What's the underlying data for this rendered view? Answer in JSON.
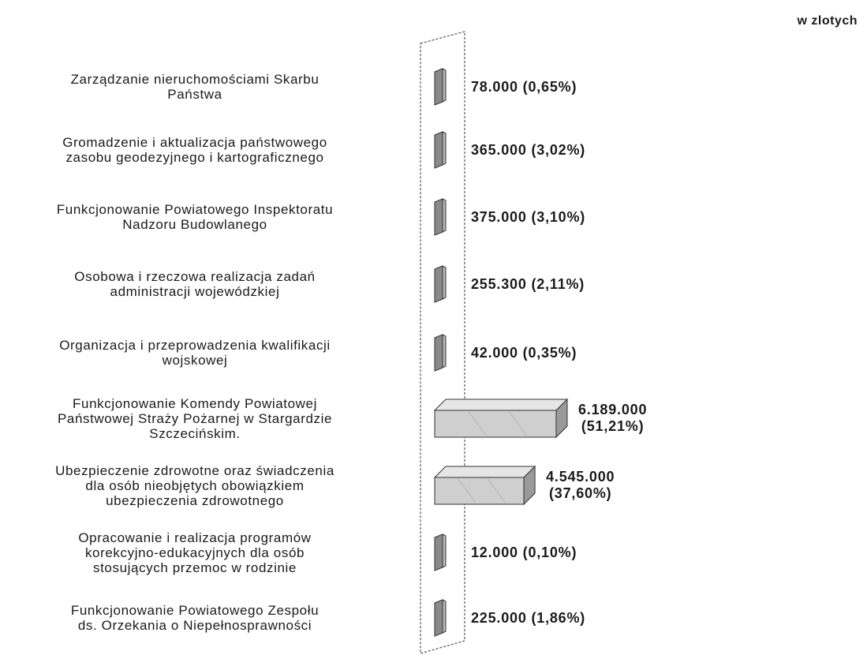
{
  "unit_label": "w zlotych",
  "colors": {
    "bar_small": "#8a8a8a",
    "bar_large": "#cfcfcf",
    "frame": "#555555",
    "text": "#1a1a1a"
  },
  "chart_data": {
    "type": "bar",
    "orientation": "horizontal",
    "unit": "w zlotych",
    "categories": [
      "Zarządzanie nieruchomościami Skarbu Państwa",
      "Gromadzenie i aktualizacja państwowego zasobu geodezyjnego i kartograficznego",
      "Funkcjonowanie Powiatowego Inspektoratu Nadzoru Budowlanego",
      "Osobowa i rzeczowa realizacja zadań administracji wojewódzkiej",
      "Organizacja i przeprowadzenia kwalifikacji wojskowej",
      "Funkcjonowanie Komendy Powiatowej Państwowej Straży Pożarnej w Stargardzie Szczecińskim.",
      "Ubezpieczenie zdrowotne oraz świadczenia dla osób nieobjętych obowiązkiem ubezpieczenia zdrowotnego",
      "Opracowanie i realizacja programów korekcyjno-edukacyjnych dla osób stosujących przemoc w rodzinie",
      "Funkcjonowanie Powiatowego Zespołu ds. Orzekania o Niepełnosprawności"
    ],
    "category_lines": [
      [
        "Zarządzanie nieruchomościami Skarbu",
        "Państwa"
      ],
      [
        "Gromadzenie i aktualizacja państwowego",
        "zasobu geodezyjnego i kartograficznego"
      ],
      [
        "Funkcjonowanie Powiatowego Inspektoratu",
        "Nadzoru Budowlanego"
      ],
      [
        "Osobowa i rzeczowa realizacja zadań",
        "administracji wojewódzkiej"
      ],
      [
        "Organizacja i przeprowadzenia kwalifikacji",
        "wojskowej"
      ],
      [
        "Funkcjonowanie Komendy Powiatowej",
        "Państwowej  Straży Pożarnej w Stargardzie",
        "Szczecińskim."
      ],
      [
        "Ubezpieczenie zdrowotne oraz świadczenia",
        "dla osób nieobjętych obowiązkiem",
        "ubezpieczenia zdrowotnego"
      ],
      [
        "Opracowanie i realizacja programów",
        "korekcyjno-edukacyjnych dla osób",
        "stosujących przemoc w rodzinie"
      ],
      [
        "Funkcjonowanie Powiatowego Zespołu",
        "ds. Orzekania o Niepełnosprawności"
      ]
    ],
    "values": [
      78000,
      365000,
      375000,
      255300,
      42000,
      6189000,
      4545000,
      12000,
      225000
    ],
    "value_labels": [
      [
        "78.000 (0,65%)"
      ],
      [
        "365.000 (3,02%)"
      ],
      [
        "375.000 (3,10%)"
      ],
      [
        "255.300 (2,11%)"
      ],
      [
        "42.000 (0,35%)"
      ],
      [
        "6.189.000",
        "(51,21%)"
      ],
      [
        "4.545.000",
        "(37,60%)"
      ],
      [
        "12.000 (0,10%)"
      ],
      [
        "225.000 (1,86%)"
      ]
    ],
    "percentages": [
      0.65,
      3.02,
      3.1,
      2.11,
      0.35,
      51.21,
      37.6,
      0.1,
      1.86
    ]
  }
}
